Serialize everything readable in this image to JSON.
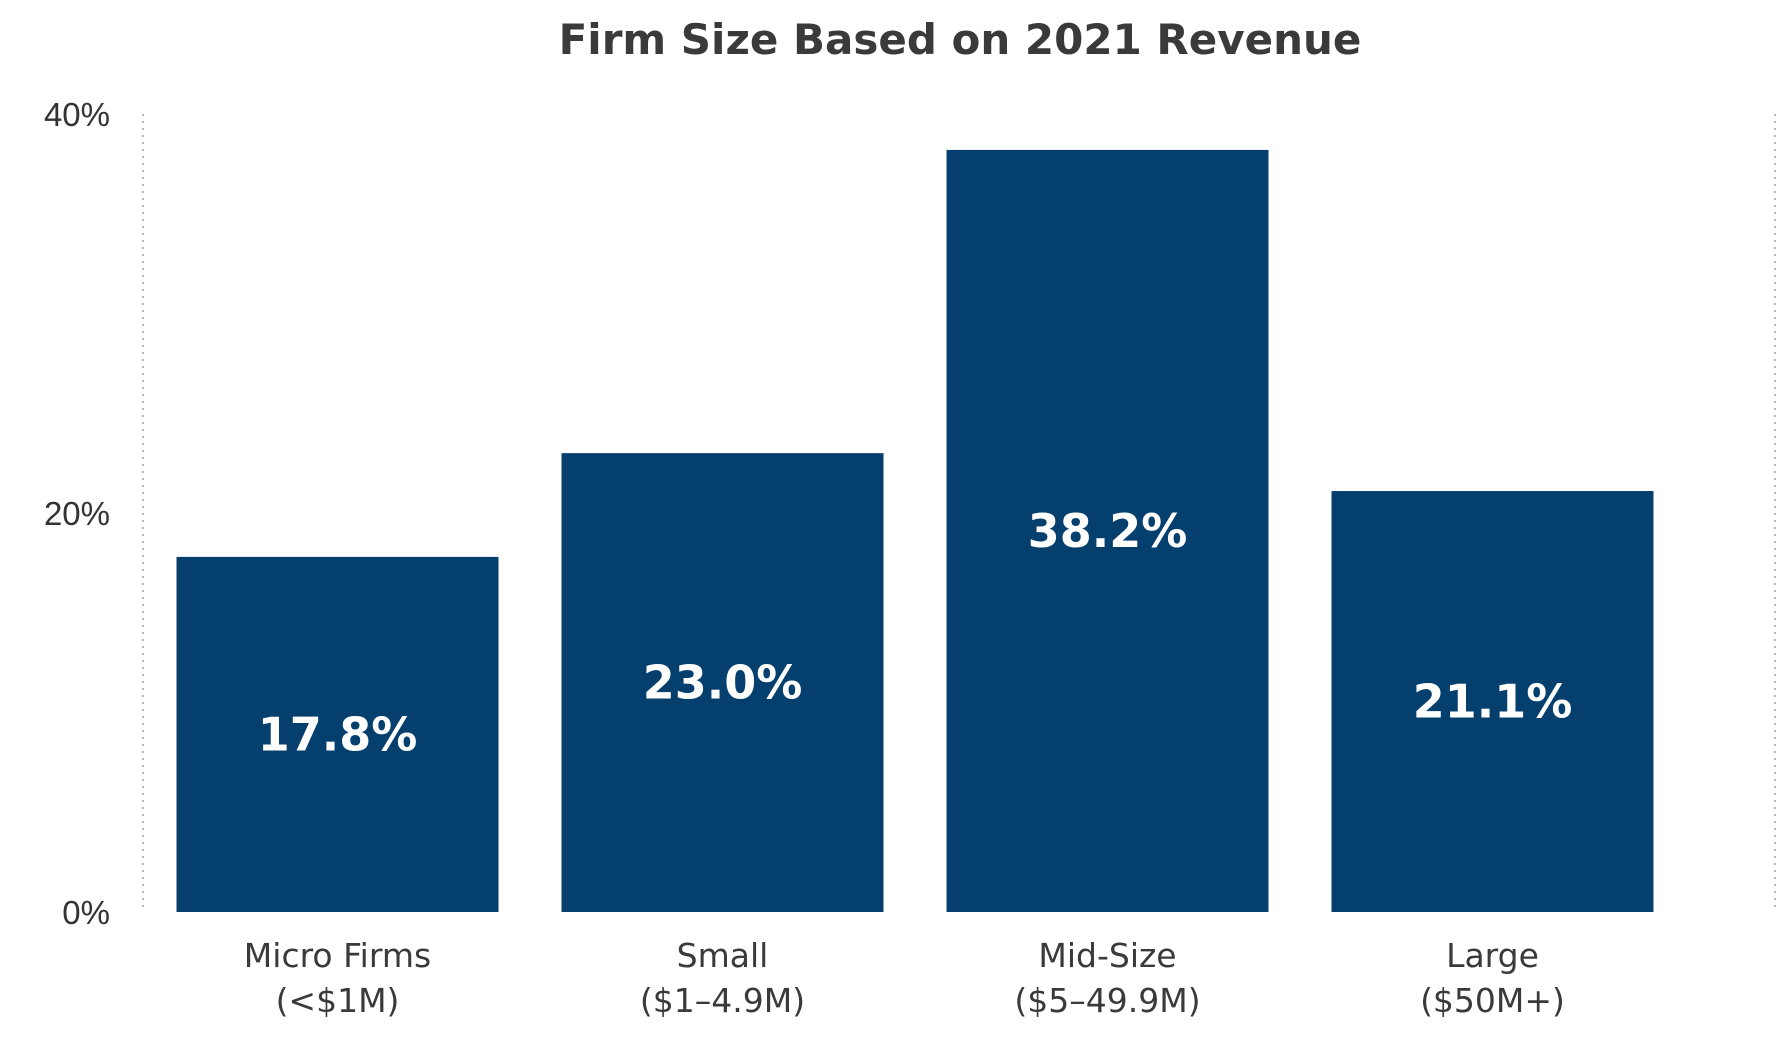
{
  "chart_data": {
    "type": "bar",
    "title": "Firm Size Based on 2021 Revenue",
    "xlabel": "",
    "ylabel": "",
    "categories": [
      {
        "line1": "Micro Firms",
        "line2": "(<$1M)"
      },
      {
        "line1": "Small",
        "line2": "($1–4.9M)"
      },
      {
        "line1": "Mid-Size",
        "line2": "($5–49.9M)"
      },
      {
        "line1": "Large",
        "line2": "($50M+)"
      }
    ],
    "values": [
      17.8,
      23.0,
      38.2,
      21.1
    ],
    "value_labels": [
      "17.8%",
      "23.0%",
      "38.2%",
      "21.1%"
    ],
    "ylim": [
      0,
      40
    ],
    "y_ticks": [
      {
        "value": 0,
        "label": "0%"
      },
      {
        "value": 20,
        "label": "20%"
      },
      {
        "value": 40,
        "label": "40%"
      }
    ],
    "grid": false,
    "legend": "none",
    "bar_color": "#053f6e",
    "value_label_color": "#ffffff"
  }
}
